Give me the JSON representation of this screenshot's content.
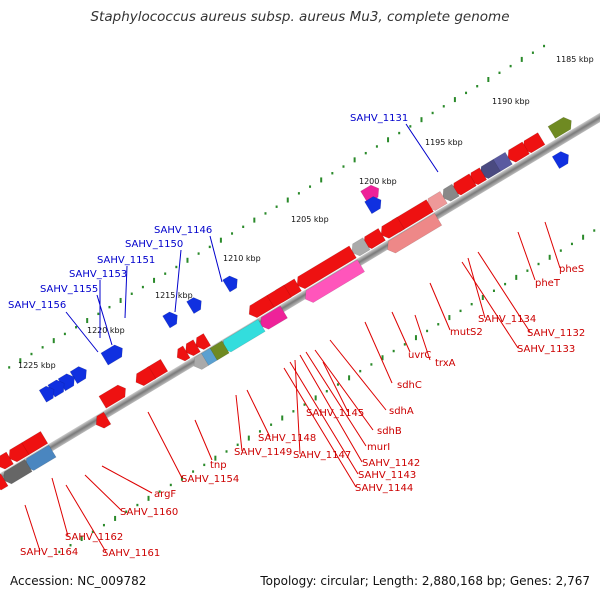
{
  "title": "Staphylococcus aureus subsp. aureus Mu3, complete genome",
  "footer": {
    "accession": "Accession: NC_009782",
    "summary": "Topology: circular; Length: 2,880,168 bp; Genes: 2,767"
  },
  "kbp_ticks": [
    "1185 kbp",
    "1190 kbp",
    "1195 kbp",
    "1200 kbp",
    "1205 kbp",
    "1210 kbp",
    "1215 kbp",
    "1220 kbp",
    "1225 kbp"
  ],
  "forward_labels": [
    "SAHV_1131",
    "SAHV_1146",
    "SAHV_1150",
    "SAHV_1151",
    "SAHV_1153",
    "SAHV_1155",
    "SAHV_1156"
  ],
  "reverse_labels": [
    "pheS",
    "pheT",
    "SAHV_1134",
    "SAHV_1132",
    "mutS2",
    "SAHV_1133",
    "trxA",
    "uvrC",
    "sdhC",
    "sdhA",
    "SAHV_1145",
    "sdhB",
    "murI",
    "SAHV_1142",
    "SAHV_1148",
    "SAHV_1147",
    "SAHV_1143",
    "SAHV_1149",
    "SAHV_1144",
    "tnp",
    "SAHV_1154",
    "argF",
    "SAHV_1160",
    "SAHV_1162",
    "SAHV_1164",
    "SAHV_1161"
  ],
  "colors": {
    "forward_gene": "#1030e0",
    "reverse_gene": "#ee1111",
    "backbone": "#888888",
    "tick_green": "#2a8a2a",
    "forward_label": "#0000cc",
    "reverse_label": "#cc0000"
  }
}
